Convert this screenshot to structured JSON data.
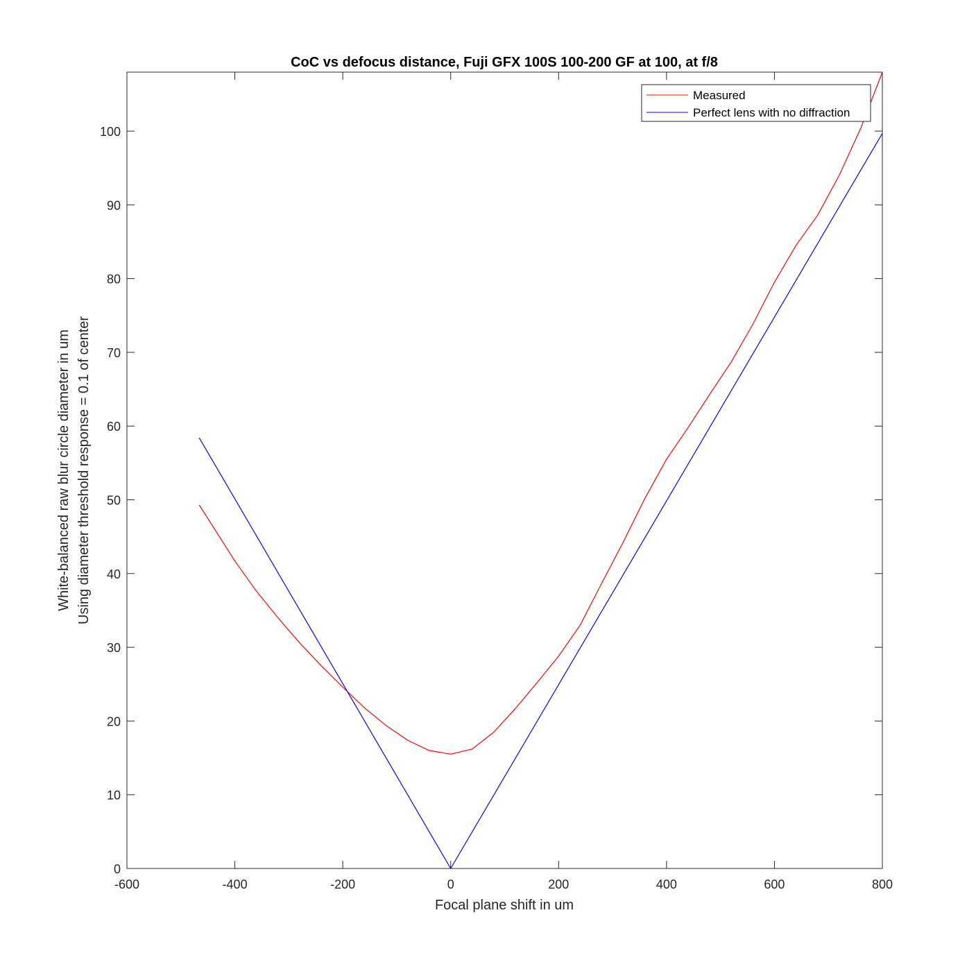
{
  "chart_data": {
    "type": "line",
    "title": "CoC vs defocus distance, Fuji GFX 100S 100-200 GF at 100, at f/8",
    "xlabel": "Focal plane shift in um",
    "ylabel_lines": [
      "White-balanced raw blur circle diameter in um",
      "Using diameter threshold response = 0.1 of center"
    ],
    "xlim": [
      -600,
      800
    ],
    "ylim": [
      0,
      108
    ],
    "xticks": [
      -600,
      -400,
      -200,
      0,
      200,
      400,
      600,
      800
    ],
    "yticks": [
      0,
      10,
      20,
      30,
      40,
      50,
      60,
      70,
      80,
      90,
      100
    ],
    "grid": false,
    "legend_position": "top-right",
    "series": [
      {
        "name": "Measured",
        "color": "#ff0000",
        "x": [
          -466,
          -440,
          -400,
          -360,
          -320,
          -280,
          -240,
          -200,
          -160,
          -120,
          -80,
          -40,
          0,
          40,
          80,
          120,
          160,
          200,
          240,
          280,
          320,
          360,
          400,
          440,
          480,
          520,
          560,
          600,
          640,
          680,
          720,
          760,
          800
        ],
        "y": [
          49.3,
          46.3,
          41.7,
          37.6,
          34.0,
          30.6,
          27.5,
          24.6,
          21.8,
          19.4,
          17.4,
          16.0,
          15.5,
          16.2,
          18.5,
          21.7,
          25.2,
          28.8,
          33.0,
          38.7,
          44.3,
          50.2,
          55.5,
          59.8,
          64.3,
          68.7,
          73.8,
          79.5,
          84.5,
          88.6,
          94.0,
          100.4,
          108.0
        ]
      },
      {
        "name": "Perfect lens with no diffraction",
        "color": "#0000ff",
        "x": [
          -466,
          0,
          800
        ],
        "y": [
          58.4,
          0,
          99.7
        ]
      }
    ]
  }
}
